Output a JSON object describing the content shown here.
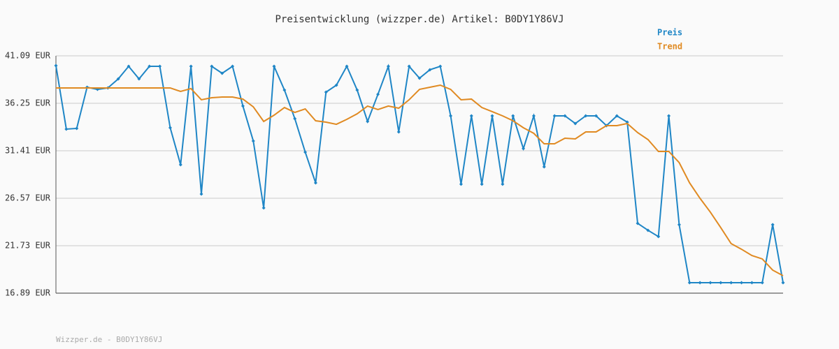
{
  "chart_data": {
    "type": "line",
    "title": "Preisentwicklung (wizzper.de) Artikel: B0DY1Y86VJ",
    "footer": "Wizzper.de - B0DY1Y86VJ",
    "ylim": [
      16.89,
      41.09
    ],
    "yticks": [
      {
        "value": 16.89,
        "label": "16.89 EUR"
      },
      {
        "value": 21.73,
        "label": "21.73 EUR"
      },
      {
        "value": 26.57,
        "label": "26.57 EUR"
      },
      {
        "value": 31.41,
        "label": "31.41 EUR"
      },
      {
        "value": 36.25,
        "label": "36.25 EUR"
      },
      {
        "value": 41.09,
        "label": "41.09 EUR"
      }
    ],
    "grid": true,
    "legend": "top-right",
    "series": [
      {
        "name": "Preis",
        "color": "#1f86c6",
        "markers": true,
        "values": [
          40.09,
          33.62,
          33.69,
          37.89,
          37.67,
          37.82,
          38.74,
          40.02,
          38.74,
          40.02,
          40.02,
          33.76,
          29.99,
          40.02,
          27.0,
          40.02,
          39.31,
          40.02,
          35.97,
          32.41,
          25.58,
          40.02,
          37.6,
          34.68,
          31.27,
          28.14,
          37.39,
          38.1,
          40.02,
          37.6,
          34.4,
          37.17,
          40.02,
          33.33,
          40.02,
          38.81,
          39.67,
          40.02,
          34.97,
          28.0,
          34.97,
          28.0,
          34.97,
          28.0,
          34.97,
          31.63,
          34.97,
          29.77,
          34.97,
          34.97,
          34.19,
          34.97,
          34.97,
          33.97,
          34.97,
          34.33,
          24.01,
          23.3,
          22.66,
          34.97,
          23.87,
          17.96,
          17.96,
          17.96,
          17.96,
          17.96,
          17.96,
          17.96,
          17.96,
          23.87,
          17.96
        ]
      },
      {
        "name": "Trend",
        "color": "#e08a22",
        "markers": false,
        "values": [
          37.82,
          37.82,
          37.82,
          37.82,
          37.82,
          37.82,
          37.82,
          37.82,
          37.82,
          37.82,
          37.82,
          37.82,
          37.46,
          37.75,
          36.61,
          36.82,
          36.89,
          36.89,
          36.68,
          35.89,
          34.4,
          35.04,
          35.82,
          35.32,
          35.68,
          34.47,
          34.33,
          34.11,
          34.61,
          35.18,
          35.97,
          35.61,
          35.97,
          35.75,
          36.61,
          37.67,
          37.89,
          38.1,
          37.67,
          36.61,
          36.68,
          35.82,
          35.4,
          34.97,
          34.47,
          33.76,
          33.19,
          32.12,
          32.12,
          32.69,
          32.62,
          33.33,
          33.33,
          33.97,
          33.97,
          34.19,
          33.26,
          32.55,
          31.34,
          31.34,
          30.2,
          28.14,
          26.57,
          25.15,
          23.58,
          21.94,
          21.37,
          20.73,
          20.38,
          19.24,
          18.67
        ]
      }
    ]
  }
}
